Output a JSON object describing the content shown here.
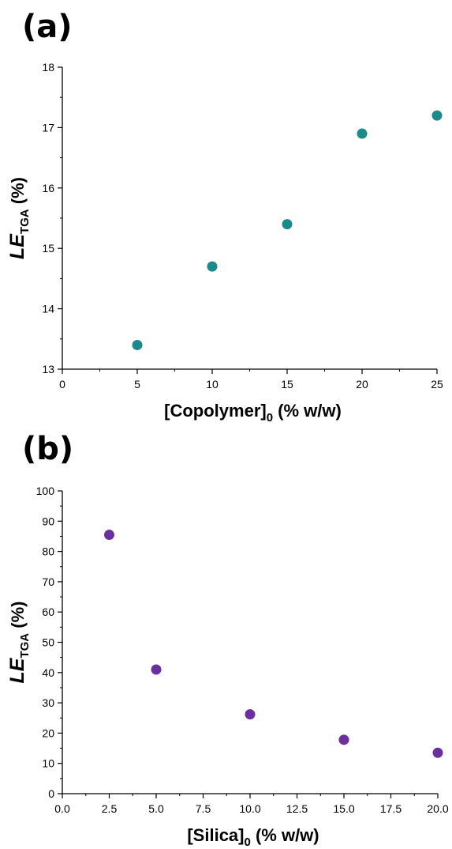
{
  "panels": [
    {
      "label": "(a)"
    },
    {
      "label": "(b)"
    }
  ],
  "chart_data": [
    {
      "type": "scatter",
      "x": [
        5,
        10,
        15,
        20,
        25
      ],
      "y": [
        13.4,
        14.7,
        15.4,
        16.9,
        17.2
      ],
      "xlim": [
        0,
        25
      ],
      "ylim": [
        13,
        18
      ],
      "x_ticks": [
        0,
        5,
        10,
        15,
        20,
        25
      ],
      "y_ticks": [
        13,
        14,
        15,
        16,
        17,
        18
      ],
      "x_tick_labels": [
        "0",
        "5",
        "10",
        "15",
        "20",
        "25"
      ],
      "y_tick_labels": [
        "13",
        "14",
        "15",
        "16",
        "17",
        "18"
      ],
      "xlabel_main": "[Copolymer]",
      "xlabel_sub": "0",
      "xlabel_tail": " (% w/w)",
      "ylabel_main": "LE",
      "ylabel_sub": "TGA",
      "ylabel_tail": " (%)",
      "marker_color": "#1b8a8a",
      "grid": false
    },
    {
      "type": "scatter",
      "x": [
        2.5,
        5.0,
        10.0,
        15.0,
        20.0
      ],
      "y": [
        85.5,
        41.0,
        26.2,
        17.8,
        13.5
      ],
      "xlim": [
        0,
        20
      ],
      "ylim": [
        0,
        100
      ],
      "x_ticks": [
        0,
        2.5,
        5,
        7.5,
        10,
        12.5,
        15,
        17.5,
        20
      ],
      "y_ticks": [
        0,
        10,
        20,
        30,
        40,
        50,
        60,
        70,
        80,
        90,
        100
      ],
      "x_tick_labels": [
        "0.0",
        "2.5",
        "5.0",
        "7.5",
        "10.0",
        "12.5",
        "15.0",
        "17.5",
        "20.0"
      ],
      "y_tick_labels": [
        "0",
        "10",
        "20",
        "30",
        "40",
        "50",
        "60",
        "70",
        "80",
        "90",
        "100"
      ],
      "xlabel_main": "[Silica]",
      "xlabel_sub": "0",
      "xlabel_tail": " (% w/w)",
      "ylabel_main": "LE",
      "ylabel_sub": "TGA",
      "ylabel_tail": " (%)",
      "marker_color": "#6b2fa0",
      "grid": false
    }
  ]
}
